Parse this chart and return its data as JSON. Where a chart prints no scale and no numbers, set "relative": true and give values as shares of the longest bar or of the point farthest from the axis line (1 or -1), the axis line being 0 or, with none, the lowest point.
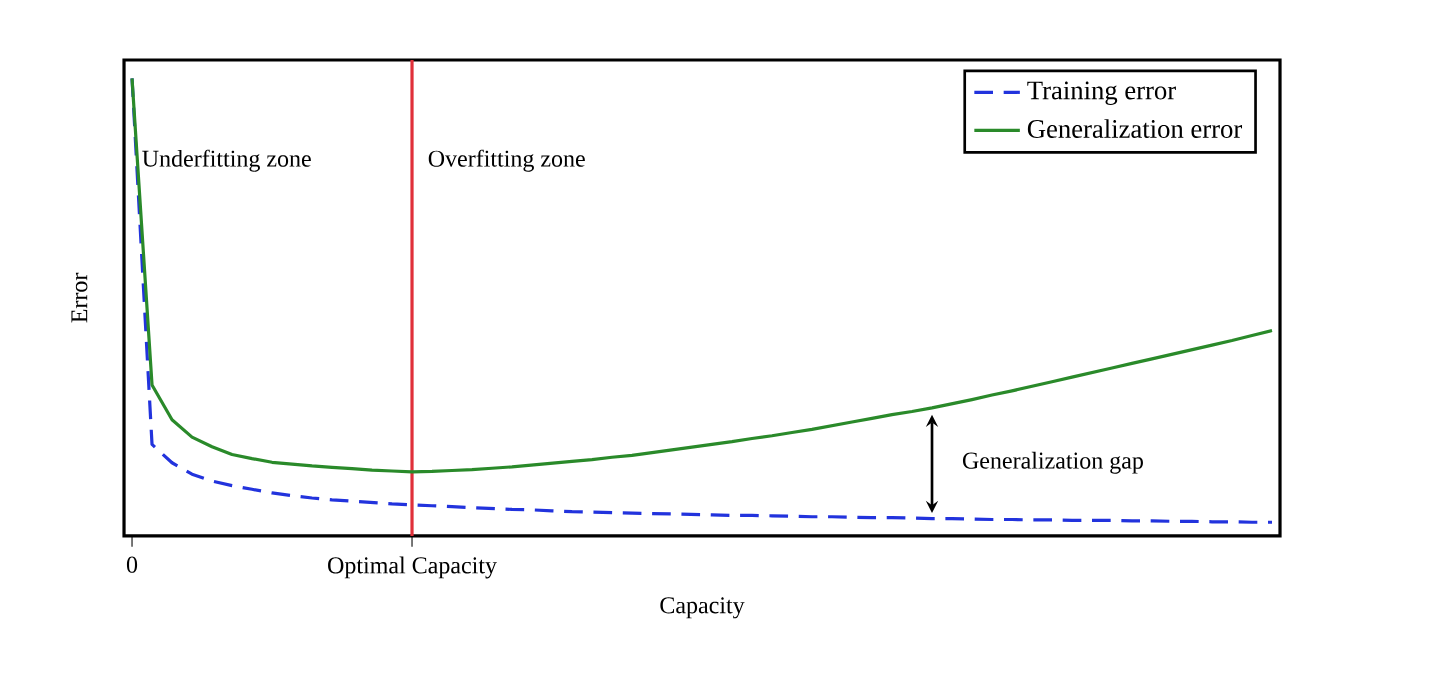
{
  "chart_data": {
    "type": "line",
    "relative": true,
    "xlabel": "Capacity",
    "ylabel": "Error",
    "legend": "top right",
    "grid": false,
    "marker": "none",
    "categories": [
      "0",
      null,
      null,
      null,
      null,
      null,
      null,
      null,
      null,
      null,
      null,
      null,
      null,
      null,
      "Optimal Capacity",
      null,
      null,
      null,
      null,
      null,
      null,
      null,
      null,
      null,
      null,
      null,
      null,
      null,
      null,
      null,
      null,
      null,
      null,
      null,
      null,
      null,
      null,
      null,
      null,
      null,
      null,
      null,
      null,
      null,
      null,
      null,
      null,
      null,
      null,
      null,
      null,
      null,
      null,
      null,
      null,
      null,
      null,
      null
    ],
    "series": [
      {
        "name": "Training error",
        "color": "#2233dd",
        "line_style": "dashed",
        "values": [
          1.0,
          0.2,
          0.16,
          0.135,
          0.12,
          0.11,
          0.102,
          0.094,
          0.088,
          0.083,
          0.079,
          0.076,
          0.073,
          0.07,
          0.068,
          0.066,
          0.064,
          0.062,
          0.06,
          0.058,
          0.057,
          0.055,
          0.053,
          0.052,
          0.051,
          0.05,
          0.049,
          0.048,
          0.047,
          0.046,
          0.045,
          0.045,
          0.044,
          0.043,
          0.042,
          0.042,
          0.041,
          0.04,
          0.04,
          0.039,
          0.038,
          0.038,
          0.037,
          0.036,
          0.036,
          0.035,
          0.035,
          0.034,
          0.034,
          0.034,
          0.033,
          0.033,
          0.032,
          0.032,
          0.031,
          0.031,
          0.03,
          0.03
        ]
      },
      {
        "name": "Generalization error",
        "color": "#2a8a2a",
        "line_style": "solid",
        "values": [
          1.0,
          0.33,
          0.254,
          0.216,
          0.195,
          0.178,
          0.169,
          0.161,
          0.157,
          0.153,
          0.15,
          0.147,
          0.144,
          0.142,
          0.14,
          0.141,
          0.143,
          0.145,
          0.148,
          0.151,
          0.155,
          0.159,
          0.163,
          0.167,
          0.172,
          0.176,
          0.182,
          0.188,
          0.194,
          0.2,
          0.206,
          0.213,
          0.219,
          0.226,
          0.233,
          0.241,
          0.249,
          0.257,
          0.265,
          0.272,
          0.28,
          0.289,
          0.298,
          0.308,
          0.317,
          0.327,
          0.337,
          0.347,
          0.357,
          0.367,
          0.377,
          0.387,
          0.397,
          0.407,
          0.417,
          0.427,
          0.438,
          0.449
        ]
      }
    ],
    "ref_lines": [
      {
        "axis": "x",
        "value": "Optimal Capacity",
        "color": "#e0303a"
      }
    ],
    "annotations": [
      "Underfitting zone",
      "Overfitting zone",
      "Generalization gap"
    ]
  }
}
